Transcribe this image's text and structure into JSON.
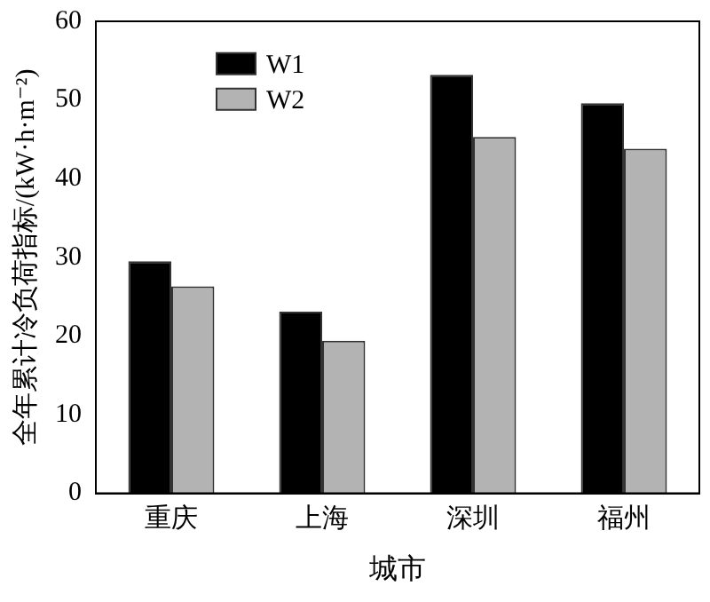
{
  "chart_data": {
    "type": "bar",
    "xlabel": "城市",
    "ylabel": "全年累计冷负荷指标/(kW·h·m⁻²)",
    "categories": [
      "重庆",
      "上海",
      "深圳",
      "福州"
    ],
    "series": [
      {
        "name": "W1",
        "color": "#000000",
        "values": [
          29.5,
          23.1,
          53.2,
          49.6
        ]
      },
      {
        "name": "W2",
        "color": "#b3b3b3",
        "values": [
          26.3,
          19.4,
          45.3,
          43.8
        ]
      }
    ],
    "ylim": [
      0,
      60
    ],
    "yticks": [
      0,
      10,
      20,
      30,
      40,
      50,
      60
    ],
    "grid": false,
    "legend": "top left"
  }
}
